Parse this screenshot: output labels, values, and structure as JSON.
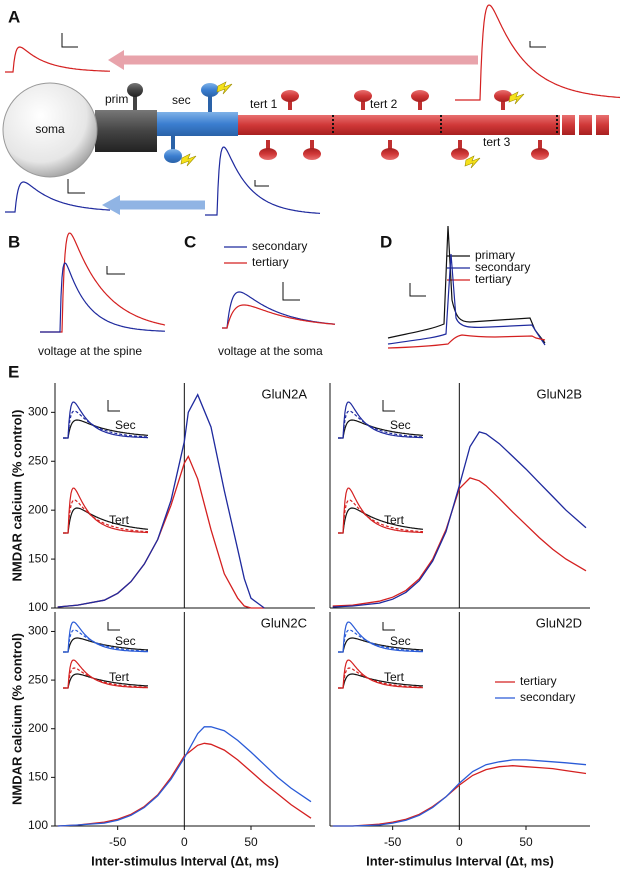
{
  "panel_a": {
    "letter": "A",
    "soma": "soma",
    "prim": "prim",
    "sec": "sec",
    "tert_1": "tert 1",
    "tert_2": "tert 2",
    "tert_3": "tert 3"
  },
  "panel_b": {
    "letter": "B",
    "caption": "voltage at the spine"
  },
  "panel_c": {
    "letter": "C",
    "legend": [
      "secondary",
      "tertiary"
    ],
    "caption": "voltage at the soma"
  },
  "panel_d": {
    "letter": "D",
    "legend": [
      "primary",
      "secondary",
      "tertiary"
    ]
  },
  "panel_e": {
    "letter": "E"
  },
  "chart_data": [
    {
      "type": "line",
      "title": "GluN2A",
      "ylabel": "NMDAR calcium (% control)",
      "insets": [
        "Sec",
        "Tert"
      ],
      "x": [
        -95,
        -80,
        -60,
        -50,
        -40,
        -30,
        -20,
        -10,
        0,
        3,
        10,
        20,
        30,
        40,
        45,
        50,
        60
      ],
      "series": [
        {
          "color": "#d42020",
          "values": [
            101,
            103,
            108,
            115,
            127,
            145,
            170,
            205,
            248,
            255,
            232,
            180,
            135,
            110,
            102,
            100,
            100
          ]
        },
        {
          "color": "#1f2a9e",
          "values": [
            101,
            103,
            108,
            115,
            127,
            145,
            170,
            210,
            270,
            300,
            318,
            285,
            220,
            160,
            130,
            110,
            100
          ]
        }
      ],
      "xlim": [
        -97,
        98
      ],
      "ylim": [
        100,
        330
      ],
      "yticks": [
        100,
        150,
        200,
        250,
        300
      ],
      "vline": 0
    },
    {
      "type": "line",
      "title": "GluN2B",
      "insets": [
        "Sec",
        "Tert"
      ],
      "x": [
        -95,
        -80,
        -60,
        -50,
        -40,
        -30,
        -20,
        -10,
        0,
        8,
        15,
        20,
        30,
        40,
        50,
        60,
        70,
        80,
        95
      ],
      "series": [
        {
          "color": "#d42020",
          "values": [
            102,
            103,
            107,
            111,
            118,
            130,
            150,
            180,
            222,
            233,
            230,
            225,
            212,
            198,
            185,
            172,
            160,
            150,
            138
          ]
        },
        {
          "color": "#1f2a9e",
          "values": [
            101,
            102,
            105,
            109,
            116,
            128,
            148,
            178,
            225,
            265,
            280,
            278,
            268,
            255,
            242,
            228,
            214,
            200,
            182
          ]
        }
      ],
      "xlim": [
        -97,
        98
      ],
      "ylim": [
        100,
        330
      ],
      "vline": 0
    },
    {
      "type": "line",
      "title": "GluN2C",
      "ylabel": "NMDAR calcium (% control)",
      "xlabel": "Inter-stimulus Interval (Δt, ms)",
      "insets": [
        "Sec",
        "Tert"
      ],
      "x": [
        -95,
        -80,
        -60,
        -50,
        -40,
        -30,
        -20,
        -10,
        0,
        10,
        15,
        20,
        30,
        40,
        50,
        60,
        70,
        80,
        95
      ],
      "series": [
        {
          "color": "#d42020",
          "values": [
            100,
            101,
            104,
            107,
            112,
            120,
            132,
            150,
            172,
            183,
            185,
            184,
            178,
            168,
            156,
            144,
            133,
            122,
            108
          ]
        },
        {
          "color": "#2a5bd7",
          "values": [
            100,
            101,
            103,
            106,
            111,
            119,
            131,
            148,
            170,
            195,
            202,
            202,
            198,
            188,
            176,
            163,
            150,
            139,
            125
          ]
        }
      ],
      "xlim": [
        -97,
        98
      ],
      "ylim": [
        100,
        320
      ],
      "xticks": [
        -50,
        0,
        50
      ],
      "yticks": [
        100,
        150,
        200,
        250,
        300
      ],
      "vline": 0
    },
    {
      "type": "line",
      "title": "GluN2D",
      "xlabel": "Inter-stimulus Interval (Δt, ms)",
      "insets": [
        "Sec",
        "Tert"
      ],
      "x": [
        -95,
        -80,
        -60,
        -50,
        -40,
        -30,
        -20,
        -10,
        0,
        10,
        20,
        30,
        40,
        50,
        60,
        70,
        80,
        95
      ],
      "series": [
        {
          "name": "tertiary",
          "color": "#d42020",
          "values": [
            100,
            100,
            102,
            104,
            107,
            112,
            120,
            130,
            142,
            152,
            158,
            161,
            162,
            161,
            160,
            159,
            157,
            154
          ]
        },
        {
          "name": "secondary",
          "color": "#2a5bd7",
          "values": [
            100,
            100,
            101,
            103,
            106,
            111,
            119,
            130,
            144,
            156,
            163,
            166,
            168,
            168,
            167,
            166,
            165,
            163
          ]
        }
      ],
      "xlim": [
        -97,
        98
      ],
      "ylim": [
        100,
        320
      ],
      "xticks": [
        -50,
        0,
        50
      ],
      "vline": 0,
      "legend": "right"
    }
  ]
}
